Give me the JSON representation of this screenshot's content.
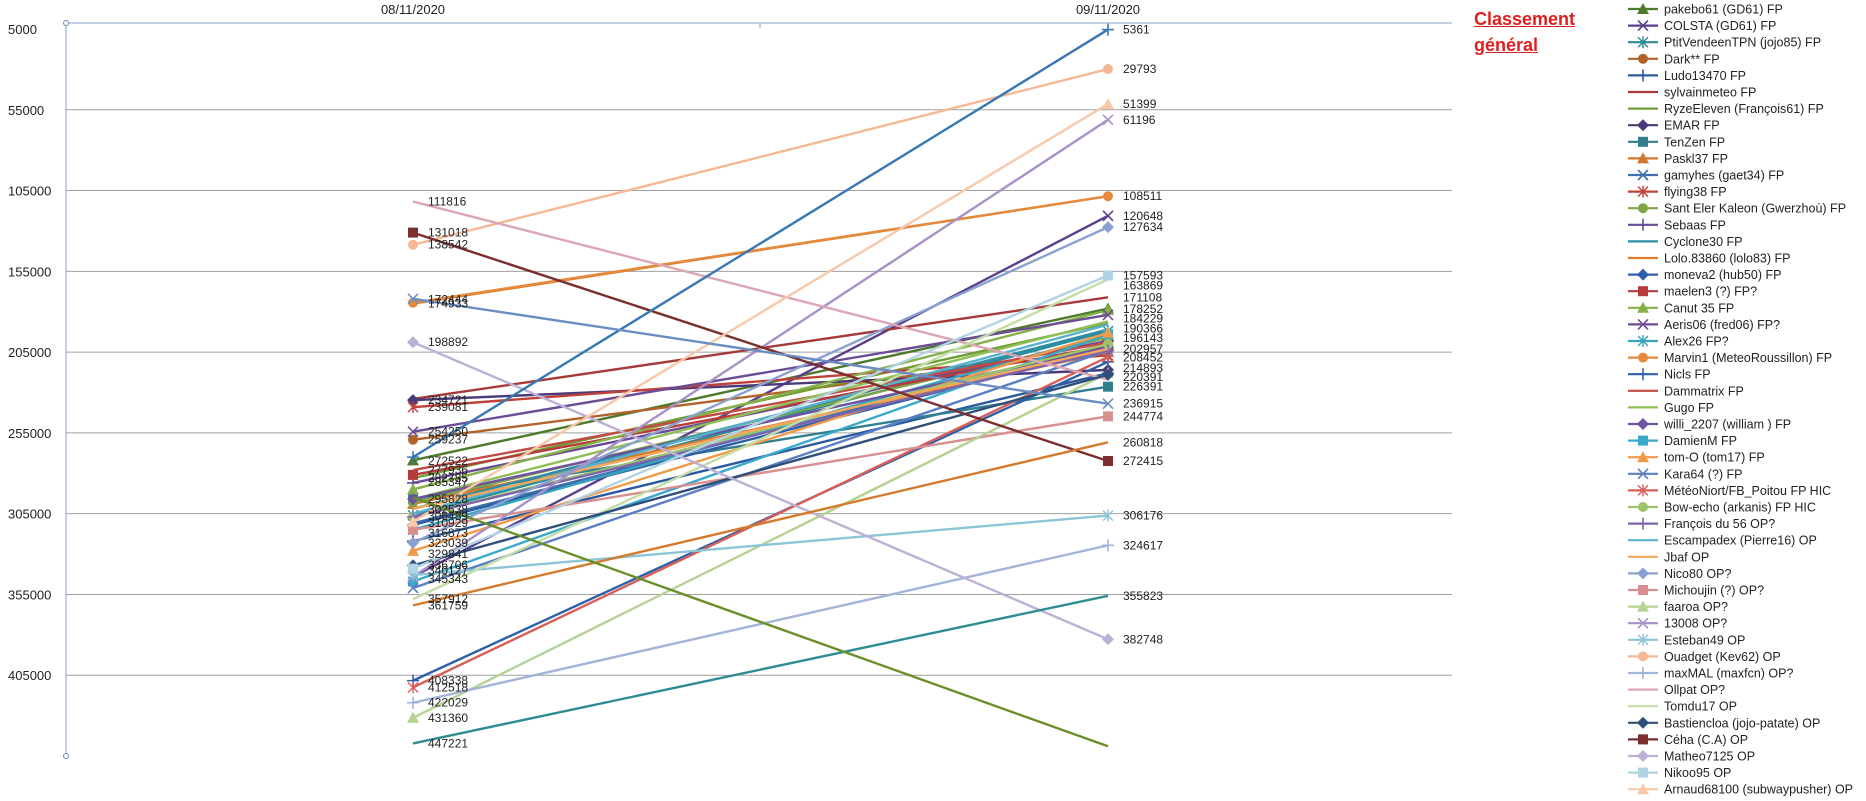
{
  "chart_data": {
    "type": "line",
    "title": "Classement général",
    "x": [
      "08/11/2020",
      "09/11/2020"
    ],
    "y_ticks": [
      5000,
      55000,
      105000,
      155000,
      205000,
      255000,
      305000,
      355000,
      405000
    ],
    "ylim": [
      5000,
      455000
    ],
    "y_inverted": true,
    "grid": true,
    "legend": "right",
    "series": [
      {
        "name": "pakebo61 (GD61) FP",
        "color": "#4e7a2c",
        "marker": "triangle",
        "values": [
          272000,
          178000
        ]
      },
      {
        "name": "COLSTA (GD61) FP",
        "color": "#5b3f8c",
        "marker": "x",
        "values": [
          344000,
          120648
        ]
      },
      {
        "name": "PtitVendeenTPN (jojo85) FP",
        "color": "#2d8a99",
        "marker": "star",
        "values": [
          306000,
          192000
        ]
      },
      {
        "name": "Dark** FP",
        "color": "#b0632b",
        "marker": "circle",
        "values": [
          259237,
          204000
        ]
      },
      {
        "name": "Ludo13470 FP",
        "color": "#2a5aa0",
        "marker": "plus",
        "values": [
          322000,
          218000
        ]
      },
      {
        "name": "sylvainmeteo FP",
        "color": "#a63a3a",
        "marker": "none",
        "values": [
          234000,
          171108
        ]
      },
      {
        "name": "RyzeEleven (François61) FP",
        "color": "#6f9e34",
        "marker": "none",
        "values": [
          283000,
          187000
        ]
      },
      {
        "name": "EMAR FP",
        "color": "#4b3a7a",
        "marker": "diamond",
        "values": [
          234721,
          216000
        ]
      },
      {
        "name": "TenZen  FP",
        "color": "#2f7f8f",
        "marker": "square",
        "values": [
          296000,
          226391
        ]
      },
      {
        "name": "Paskl37 FP",
        "color": "#d2772f",
        "marker": "triangle",
        "values": [
          299000,
          205000
        ]
      },
      {
        "name": "gamyhes (gaet34) FP",
        "color": "#3f6fae",
        "marker": "x",
        "values": [
          311000,
          200000
        ]
      },
      {
        "name": "flying38 FP",
        "color": "#c0403a",
        "marker": "star",
        "values": [
          239081,
          207000
        ]
      },
      {
        "name": "Sant Eler Kaleon (Gwerzhoù) FP",
        "color": "#7fa446",
        "marker": "circle",
        "values": [
          298000,
          196000
        ]
      },
      {
        "name": "Sebaas FP",
        "color": "#6a4b98",
        "marker": "plus",
        "values": [
          286000,
          198000
        ]
      },
      {
        "name": "Cyclone30  FP",
        "color": "#2b8fa8",
        "marker": "none",
        "values": [
          302000,
          191000
        ]
      },
      {
        "name": "Lolo.83860 (lolo83) FP",
        "color": "#e07b2a",
        "marker": "none",
        "values": [
          174933,
          108511
        ]
      },
      {
        "name": "moneva2 (hub50) FP",
        "color": "#2f5fa8",
        "marker": "diamond",
        "values": [
          312000,
          203000
        ]
      },
      {
        "name": "maelen3 (?) FP?",
        "color": "#b83a3a",
        "marker": "square",
        "values": [
          281000,
          201000
        ]
      },
      {
        "name": "Canut 35  FP",
        "color": "#86b04a",
        "marker": "triangle",
        "values": [
          290000,
          179000
        ]
      },
      {
        "name": "Aeris06 (fred06) FP?",
        "color": "#6c4c96",
        "marker": "x",
        "values": [
          254250,
          182000
        ]
      },
      {
        "name": "Alex26 FP?",
        "color": "#38a3bd",
        "marker": "star",
        "values": [
          315000,
          194000
        ]
      },
      {
        "name": "Marvin1 (MeteoRoussillon) FP",
        "color": "#e58a3c",
        "marker": "circle",
        "values": [
          174414,
          108511
        ]
      },
      {
        "name": "Nicls FP",
        "color": "#2e60aa",
        "marker": "plus",
        "values": [
          408338,
          211000
        ]
      },
      {
        "name": "Dammatrix FP",
        "color": "#c24b45",
        "marker": "none",
        "values": [
          278000,
          199000
        ]
      },
      {
        "name": "Gugo FP",
        "color": "#8fbf55",
        "marker": "none",
        "values": [
          296000,
          186000
        ]
      },
      {
        "name": "willi_2207 (william ) FP",
        "color": "#6e54a0",
        "marker": "diamond",
        "values": [
          296000,
          202000
        ]
      },
      {
        "name": "DamienM FP",
        "color": "#3aaacb",
        "marker": "square",
        "values": [
          347000,
          194000
        ]
      },
      {
        "name": "tom-O (tom17) FP",
        "color": "#f09a4a",
        "marker": "triangle",
        "values": [
          328000,
          193000
        ]
      },
      {
        "name": "Kara64 (?) FP",
        "color": "#5b7fc2",
        "marker": "x",
        "values": [
          351000,
          204000
        ]
      },
      {
        "name": "MétéoNiort/FB_Poitou FP HIC",
        "color": "#d85f58",
        "marker": "star",
        "values": [
          412518,
          208000
        ]
      },
      {
        "name": "Bow-echo (arkanis) FP HIC",
        "color": "#9cc46c",
        "marker": "circle",
        "values": [
          307000,
          200000
        ]
      },
      {
        "name": "François du 56 OP?",
        "color": "#7e66ae",
        "marker": "plus",
        "values": [
          307000,
          204000
        ]
      },
      {
        "name": "Escampadex (Pierre16) OP",
        "color": "#58b2cc",
        "marker": "none",
        "values": [
          305000,
          188000
        ]
      },
      {
        "name": "Jbaf OP",
        "color": "#f4a85e",
        "marker": "none",
        "values": [
          302000,
          203000
        ]
      },
      {
        "name": "Nico80 OP?",
        "color": "#8aa2d2",
        "marker": "diamond",
        "values": [
          323000,
          127634
        ]
      },
      {
        "name": "Michoujin (?) OP?",
        "color": "#d88f8f",
        "marker": "square",
        "values": [
          315000,
          244774
        ]
      },
      {
        "name": "faaroa OP?",
        "color": "#b4d290",
        "marker": "triangle",
        "values": [
          431360,
          218000
        ]
      },
      {
        "name": "13008 OP?",
        "color": "#a890c8",
        "marker": "x",
        "values": [
          344000,
          61196
        ]
      },
      {
        "name": "Esteban49 OP",
        "color": "#8cc4d8",
        "marker": "star",
        "values": [
          343000,
          306176
        ]
      },
      {
        "name": "Ouadget (Kev62) OP",
        "color": "#f6b894",
        "marker": "circle",
        "values": [
          138542,
          29793
        ]
      },
      {
        "name": "maxMAL (maxfcn) OP?",
        "color": "#a2b4d8",
        "marker": "plus",
        "values": [
          422029,
          324617
        ]
      },
      {
        "name": "Ollpat OP?",
        "color": "#dca6b2",
        "marker": "none",
        "values": [
          111816,
          222000
        ]
      },
      {
        "name": "Tomdu17 OP",
        "color": "#c4dca6",
        "marker": "none",
        "values": [
          357912,
          160000
        ]
      },
      {
        "name": "Bastiencloa (jojo-patate) OP",
        "color": "#2f4f7a",
        "marker": "diamond",
        "values": [
          337000,
          219000
        ]
      },
      {
        "name": "Céha (C.A) OP",
        "color": "#7a2e2e",
        "marker": "square",
        "values": [
          131018,
          272415
        ]
      },
      {
        "name": "Matheo7125 OP",
        "color": "#bcb0d4",
        "marker": "diamond",
        "values": [
          198892,
          382748
        ]
      },
      {
        "name": "Nikoo95 OP",
        "color": "#b0d4e4",
        "marker": "square",
        "values": [
          339000,
          157593
        ]
      },
      {
        "name": "Arnaud68100 (subwaypusher) OP",
        "color": "#f8c8a8",
        "marker": "triangle",
        "values": [
          310000,
          51399
        ]
      },
      {
        "name": "",
        "color": "#3a78b4",
        "marker": "plus",
        "values": [
          270000,
          5361
        ]
      },
      {
        "name": "",
        "color": "#2e8c94",
        "marker": "none",
        "values": [
          447221,
          355823
        ]
      },
      {
        "name": "",
        "color": "#d47a2c",
        "marker": "none",
        "values": [
          361759,
          260818
        ]
      },
      {
        "name": "",
        "color": "#6b8ec2",
        "marker": "x",
        "values": [
          172000,
          236915
        ]
      },
      {
        "name": "",
        "color": "#6a8e2a",
        "marker": "none",
        "values": [
          295000,
          449000
        ]
      }
    ],
    "labels_left": [
      {
        "text": "111816",
        "value": 111816
      },
      {
        "text": "131018",
        "value": 131018
      },
      {
        "text": "138542",
        "value": 138542
      },
      {
        "text": "172444",
        "value": 172444
      },
      {
        "text": "174933",
        "value": 174933
      },
      {
        "text": "198892",
        "value": 198892
      },
      {
        "text": "234721",
        "value": 234721
      },
      {
        "text": "239081",
        "value": 239081
      },
      {
        "text": "254250",
        "value": 254250
      },
      {
        "text": "259237",
        "value": 259237
      },
      {
        "text": "272522",
        "value": 272522
      },
      {
        "text": "277936",
        "value": 277936
      },
      {
        "text": "282785",
        "value": 282785
      },
      {
        "text": "285347",
        "value": 285347
      },
      {
        "text": "295828",
        "value": 295828
      },
      {
        "text": "302538",
        "value": 302538
      },
      {
        "text": "306489",
        "value": 306489
      },
      {
        "text": "310929",
        "value": 310929
      },
      {
        "text": "316873",
        "value": 316873
      },
      {
        "text": "323039",
        "value": 323039
      },
      {
        "text": "329841",
        "value": 329841
      },
      {
        "text": "336706",
        "value": 336706
      },
      {
        "text": "340127",
        "value": 340127
      },
      {
        "text": "345343",
        "value": 345343
      },
      {
        "text": "357912",
        "value": 357912
      },
      {
        "text": "361759",
        "value": 361759
      },
      {
        "text": "408338",
        "value": 408338
      },
      {
        "text": "412518",
        "value": 412518
      },
      {
        "text": "422029",
        "value": 422029
      },
      {
        "text": "431360",
        "value": 431360
      },
      {
        "text": "447221",
        "value": 447221
      }
    ],
    "labels_right": [
      {
        "text": "5361",
        "value": 5361
      },
      {
        "text": "29793",
        "value": 29793
      },
      {
        "text": "51399",
        "value": 51399
      },
      {
        "text": "61196",
        "value": 61196
      },
      {
        "text": "108511",
        "value": 108511
      },
      {
        "text": "120648",
        "value": 120648
      },
      {
        "text": "127634",
        "value": 127634
      },
      {
        "text": "157593",
        "value": 157593
      },
      {
        "text": "163869",
        "value": 163869
      },
      {
        "text": "171108",
        "value": 171108
      },
      {
        "text": "178252",
        "value": 178252
      },
      {
        "text": "184229",
        "value": 184229
      },
      {
        "text": "190366",
        "value": 190366
      },
      {
        "text": "196143",
        "value": 196143
      },
      {
        "text": "202957",
        "value": 202957
      },
      {
        "text": "208452",
        "value": 208452
      },
      {
        "text": "214893",
        "value": 214893
      },
      {
        "text": "220391",
        "value": 220391
      },
      {
        "text": "226391",
        "value": 226391
      },
      {
        "text": "236915",
        "value": 236915
      },
      {
        "text": "244774",
        "value": 244774
      },
      {
        "text": "260818",
        "value": 260818
      },
      {
        "text": "272415",
        "value": 272415
      },
      {
        "text": "306176",
        "value": 306176
      },
      {
        "text": "324617",
        "value": 324617
      },
      {
        "text": "355823",
        "value": 355823
      },
      {
        "text": "382748",
        "value": 382748
      }
    ]
  }
}
